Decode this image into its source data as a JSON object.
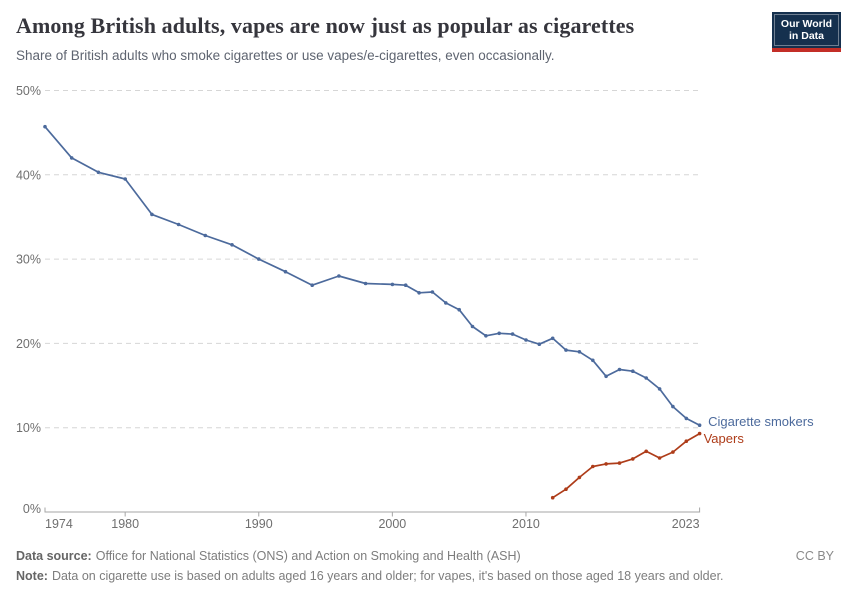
{
  "header": {
    "title": "Among British adults, vapes are now just as popular as cigarettes",
    "subtitle": "Share of British adults who smoke cigarettes or use vapes/e-cigarettes, even occasionally.",
    "logo_line1": "Our World",
    "logo_line2": "in Data"
  },
  "chart_data": {
    "type": "line",
    "title": "Among British adults, vapes are now just as popular as cigarettes",
    "subtitle": "Share of British adults who smoke cigarettes or use vapes/e-cigarettes, even occasionally.",
    "xlabel": "",
    "ylabel": "",
    "xlim": [
      1974,
      2023
    ],
    "ylim": [
      0,
      50
    ],
    "grid": "horizontal-dashed",
    "legend_position": "end-of-line-labels",
    "x_axis": {
      "ticks": [
        1974,
        1980,
        1990,
        2000,
        2010,
        2023
      ]
    },
    "y_axis": {
      "ticks": [
        0,
        10,
        20,
        30,
        40,
        50
      ],
      "tick_suffix": "%"
    },
    "series": [
      {
        "name": "Cigarette smokers",
        "color": "#4C6A9C",
        "points": [
          [
            1974,
            45.7
          ],
          [
            1976,
            42.0
          ],
          [
            1978,
            40.3
          ],
          [
            1980,
            39.5
          ],
          [
            1982,
            35.3
          ],
          [
            1984,
            34.1
          ],
          [
            1986,
            32.8
          ],
          [
            1988,
            31.7
          ],
          [
            1990,
            30.0
          ],
          [
            1992,
            28.5
          ],
          [
            1994,
            26.9
          ],
          [
            1996,
            28.0
          ],
          [
            1998,
            27.1
          ],
          [
            2000,
            27.0
          ],
          [
            2001,
            26.9
          ],
          [
            2002,
            26.0
          ],
          [
            2003,
            26.1
          ],
          [
            2004,
            24.8
          ],
          [
            2005,
            24.0
          ],
          [
            2006,
            22.0
          ],
          [
            2007,
            20.9
          ],
          [
            2008,
            21.2
          ],
          [
            2009,
            21.1
          ],
          [
            2010,
            20.4
          ],
          [
            2011,
            19.9
          ],
          [
            2012,
            20.6
          ],
          [
            2013,
            19.2
          ],
          [
            2014,
            19.0
          ],
          [
            2015,
            18.0
          ],
          [
            2016,
            16.1
          ],
          [
            2017,
            16.9
          ],
          [
            2018,
            16.7
          ],
          [
            2019,
            15.9
          ],
          [
            2020,
            14.6
          ],
          [
            2021,
            12.5
          ],
          [
            2022,
            11.1
          ],
          [
            2023,
            10.3
          ]
        ]
      },
      {
        "name": "Vapers",
        "color": "#AE3C19",
        "points": [
          [
            2012,
            1.7
          ],
          [
            2013,
            2.7
          ],
          [
            2014,
            4.1
          ],
          [
            2015,
            5.4
          ],
          [
            2016,
            5.7
          ],
          [
            2017,
            5.8
          ],
          [
            2018,
            6.3
          ],
          [
            2019,
            7.2
          ],
          [
            2020,
            6.4
          ],
          [
            2021,
            7.1
          ],
          [
            2022,
            8.4
          ],
          [
            2023,
            9.3
          ]
        ]
      }
    ]
  },
  "footer": {
    "data_source_label": "Data source:",
    "data_source": "Office for National Statistics (ONS) and Action on Smoking and Health (ASH)",
    "note_label": "Note:",
    "note": "Data on cigarette use is based on adults aged 16 years and older; for vapes, it's based on those aged 18 years and older.",
    "license": "CC BY"
  },
  "colors": {
    "cigarette_line": "#4C6A9C",
    "vapers_line": "#AE3C19",
    "logo_bg": "#15304E",
    "logo_stripe": "#C32E27",
    "gridline": "#D6D6D6",
    "axis": "#A6A6A6",
    "tick_text": "#6F6F6F"
  }
}
